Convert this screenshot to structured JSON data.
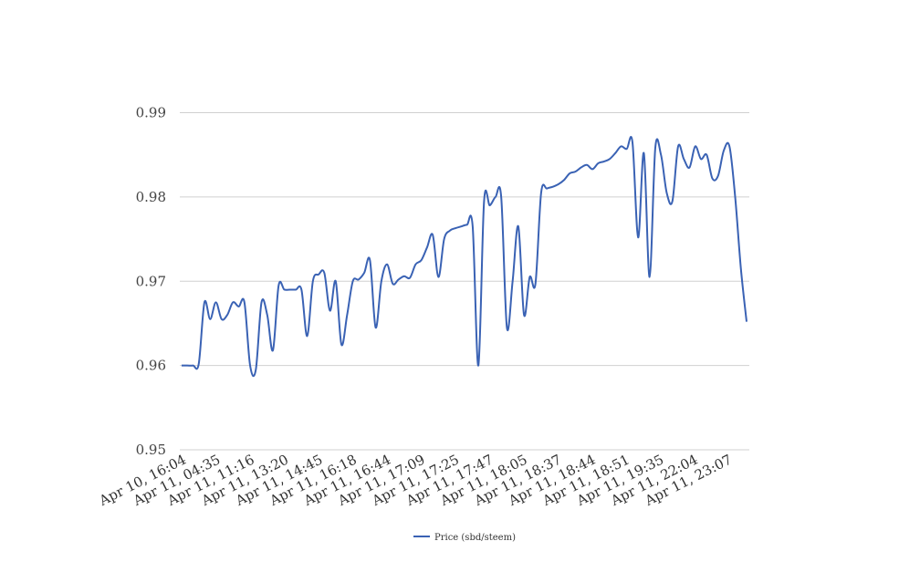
{
  "chart_data": {
    "type": "line",
    "title": "",
    "xlabel": "",
    "ylabel": "",
    "ylim": [
      0.95,
      0.99
    ],
    "yticks": [
      0.95,
      0.96,
      0.97,
      0.98,
      0.99
    ],
    "ytick_labels": [
      "0.95",
      "0.96",
      "0.97",
      "0.98",
      "0.99"
    ],
    "grid": true,
    "legend_position": "bottom",
    "x_tick_labels": [
      "Apr 10, 16:04",
      "Apr 11, 04:35",
      "Apr 11, 11:16",
      "Apr 11, 13:20",
      "Apr 11, 14:45",
      "Apr 11, 16:18",
      "Apr 11, 16:44",
      "Apr 11, 17:09",
      "Apr 11, 17:25",
      "Apr 11, 17:47",
      "Apr 11, 18:05",
      "Apr 11, 18:37",
      "Apr 11, 18:44",
      "Apr 11, 18:51",
      "Apr 11, 19:35",
      "Apr 11, 22:04",
      "Apr 11, 23:07"
    ],
    "series": [
      {
        "name": "Price (sbd/steem)",
        "color": "#3a62b4",
        "values": [
          0.96,
          0.96,
          0.96,
          0.9602,
          0.9675,
          0.9655,
          0.9675,
          0.9655,
          0.966,
          0.9675,
          0.967,
          0.9675,
          0.96,
          0.9595,
          0.9675,
          0.966,
          0.9618,
          0.9695,
          0.969,
          0.969,
          0.969,
          0.969,
          0.9635,
          0.97,
          0.9708,
          0.971,
          0.9665,
          0.97,
          0.9625,
          0.966,
          0.97,
          0.9702,
          0.971,
          0.9725,
          0.9645,
          0.97,
          0.972,
          0.9697,
          0.9702,
          0.9706,
          0.9704,
          0.972,
          0.9725,
          0.974,
          0.9755,
          0.9705,
          0.975,
          0.976,
          0.9763,
          0.9765,
          0.9767,
          0.9765,
          0.96,
          0.9795,
          0.979,
          0.98,
          0.98,
          0.9645,
          0.97,
          0.9765,
          0.966,
          0.9705,
          0.9697,
          0.9805,
          0.981,
          0.9812,
          0.9815,
          0.982,
          0.9828,
          0.983,
          0.9835,
          0.9838,
          0.9833,
          0.984,
          0.9842,
          0.9845,
          0.9852,
          0.986,
          0.9857,
          0.9865,
          0.9752,
          0.9852,
          0.9705,
          0.9858,
          0.985,
          0.9805,
          0.9795,
          0.986,
          0.9845,
          0.9835,
          0.986,
          0.9845,
          0.985,
          0.9822,
          0.9825,
          0.9855,
          0.986,
          0.98,
          0.9715,
          0.9652
        ]
      }
    ]
  }
}
